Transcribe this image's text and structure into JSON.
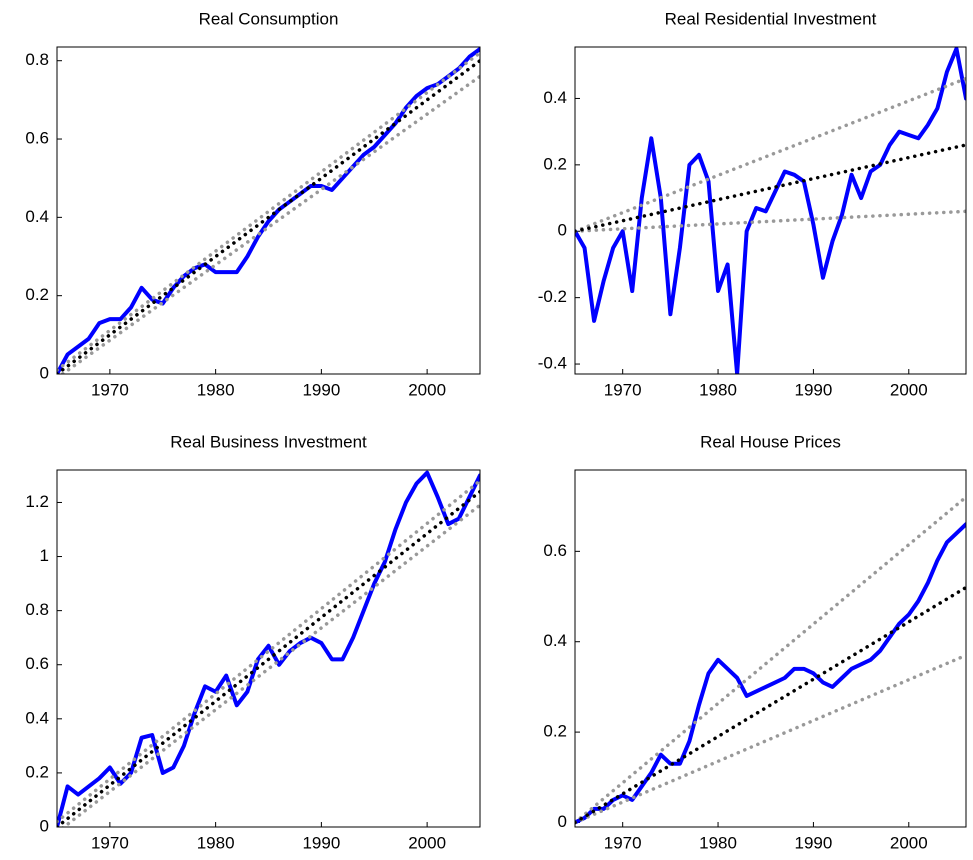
{
  "chart_data": [
    {
      "type": "line",
      "title": "Real Consumption",
      "x": [
        1965,
        1966,
        1967,
        1968,
        1969,
        1970,
        1971,
        1972,
        1973,
        1974,
        1975,
        1976,
        1977,
        1978,
        1979,
        1980,
        1981,
        1982,
        1983,
        1984,
        1985,
        1986,
        1987,
        1988,
        1989,
        1990,
        1991,
        1992,
        1993,
        1994,
        1995,
        1996,
        1997,
        1998,
        1999,
        2000,
        2001,
        2002,
        2003,
        2004,
        2005
      ],
      "xlim": [
        1965,
        2005
      ],
      "xticks": [
        1970,
        1980,
        1990,
        2000
      ],
      "ylim": [
        0,
        0.835
      ],
      "yticks": [
        0,
        0.2,
        0.4,
        0.6,
        0.8
      ],
      "series": [
        {
          "color": "#0000ff",
          "style": "solid",
          "values": [
            0,
            0.05,
            0.07,
            0.09,
            0.13,
            0.14,
            0.14,
            0.17,
            0.22,
            0.19,
            0.18,
            0.22,
            0.25,
            0.27,
            0.28,
            0.26,
            0.26,
            0.26,
            0.3,
            0.35,
            0.39,
            0.42,
            0.44,
            0.46,
            0.48,
            0.48,
            0.47,
            0.5,
            0.53,
            0.56,
            0.58,
            0.61,
            0.64,
            0.68,
            0.71,
            0.73,
            0.74,
            0.76,
            0.78,
            0.81,
            0.83
          ]
        },
        {
          "color": "#999999",
          "style": "dotted",
          "x": [
            1965,
            2005
          ],
          "values": [
            0.01,
            0.82
          ]
        },
        {
          "color": "#999999",
          "style": "dotted",
          "x": [
            1965,
            2005
          ],
          "values": [
            -0.01,
            0.76
          ]
        },
        {
          "color": "#000000",
          "style": "dotted",
          "x": [
            1965,
            2005
          ],
          "values": [
            0,
            0.8
          ]
        }
      ]
    },
    {
      "type": "line",
      "title": "Real Residential Investment",
      "x": [
        1965,
        1966,
        1967,
        1968,
        1969,
        1970,
        1971,
        1972,
        1973,
        1974,
        1975,
        1976,
        1977,
        1978,
        1979,
        1980,
        1981,
        1982,
        1983,
        1984,
        1985,
        1986,
        1987,
        1988,
        1989,
        1990,
        1991,
        1992,
        1993,
        1994,
        1995,
        1996,
        1997,
        1998,
        1999,
        2000,
        2001,
        2002,
        2003,
        2004,
        2005,
        2006
      ],
      "xlim": [
        1965,
        2006
      ],
      "xticks": [
        1970,
        1980,
        1990,
        2000
      ],
      "ylim": [
        -0.43,
        0.555
      ],
      "yticks": [
        -0.4,
        -0.2,
        0,
        0.2,
        0.4
      ],
      "series": [
        {
          "color": "#0000ff",
          "style": "solid",
          "values": [
            0,
            -0.05,
            -0.27,
            -0.15,
            -0.05,
            0,
            -0.18,
            0.1,
            0.28,
            0.1,
            -0.25,
            -0.05,
            0.2,
            0.23,
            0.15,
            -0.18,
            -0.1,
            -0.43,
            0,
            0.07,
            0.06,
            0.12,
            0.18,
            0.17,
            0.15,
            0.02,
            -0.14,
            -0.03,
            0.05,
            0.17,
            0.1,
            0.18,
            0.2,
            0.26,
            0.3,
            0.29,
            0.28,
            0.32,
            0.37,
            0.48,
            0.55,
            0.4
          ]
        },
        {
          "color": "#999999",
          "style": "dotted",
          "x": [
            1965,
            2006
          ],
          "values": [
            0,
            0.46
          ]
        },
        {
          "color": "#999999",
          "style": "dotted",
          "x": [
            1965,
            2006
          ],
          "values": [
            0,
            0.06
          ]
        },
        {
          "color": "#000000",
          "style": "dotted",
          "x": [
            1965,
            2006
          ],
          "values": [
            0,
            0.26
          ]
        }
      ]
    },
    {
      "type": "line",
      "title": "Real Business Investment",
      "x": [
        1965,
        1966,
        1967,
        1968,
        1969,
        1970,
        1971,
        1972,
        1973,
        1974,
        1975,
        1976,
        1977,
        1978,
        1979,
        1980,
        1981,
        1982,
        1983,
        1984,
        1985,
        1986,
        1987,
        1988,
        1989,
        1990,
        1991,
        1992,
        1993,
        1994,
        1995,
        1996,
        1997,
        1998,
        1999,
        2000,
        2001,
        2002,
        2003,
        2004,
        2005
      ],
      "xlim": [
        1965,
        2005
      ],
      "xticks": [
        1970,
        1980,
        1990,
        2000
      ],
      "ylim": [
        0,
        1.32
      ],
      "yticks": [
        0,
        0.2,
        0.4,
        0.6,
        0.8,
        1,
        1.2
      ],
      "series": [
        {
          "color": "#0000ff",
          "style": "solid",
          "values": [
            0,
            0.15,
            0.12,
            0.15,
            0.18,
            0.22,
            0.16,
            0.2,
            0.33,
            0.34,
            0.2,
            0.22,
            0.3,
            0.42,
            0.52,
            0.5,
            0.56,
            0.45,
            0.5,
            0.62,
            0.67,
            0.6,
            0.65,
            0.68,
            0.7,
            0.68,
            0.62,
            0.62,
            0.7,
            0.8,
            0.9,
            0.98,
            1.1,
            1.2,
            1.27,
            1.31,
            1.22,
            1.12,
            1.14,
            1.22,
            1.3
          ]
        },
        {
          "color": "#999999",
          "style": "dotted",
          "x": [
            1965,
            2005
          ],
          "values": [
            0.02,
            1.28
          ]
        },
        {
          "color": "#999999",
          "style": "dotted",
          "x": [
            1965,
            2005
          ],
          "values": [
            -0.02,
            1.19
          ]
        },
        {
          "color": "#000000",
          "style": "dotted",
          "x": [
            1965,
            2005
          ],
          "values": [
            0,
            1.24
          ]
        }
      ]
    },
    {
      "type": "line",
      "title": "Real House Prices",
      "x": [
        1965,
        1966,
        1967,
        1968,
        1969,
        1970,
        1971,
        1972,
        1973,
        1974,
        1975,
        1976,
        1977,
        1978,
        1979,
        1980,
        1981,
        1982,
        1983,
        1984,
        1985,
        1986,
        1987,
        1988,
        1989,
        1990,
        1991,
        1992,
        1993,
        1994,
        1995,
        1996,
        1997,
        1998,
        1999,
        2000,
        2001,
        2002,
        2003,
        2004,
        2005,
        2006
      ],
      "xlim": [
        1965,
        2006
      ],
      "xticks": [
        1970,
        1980,
        1990,
        2000
      ],
      "ylim": [
        -0.01,
        0.78
      ],
      "yticks": [
        0,
        0.2,
        0.4,
        0.6
      ],
      "series": [
        {
          "color": "#0000ff",
          "style": "solid",
          "values": [
            0,
            0.01,
            0.03,
            0.03,
            0.05,
            0.06,
            0.05,
            0.08,
            0.11,
            0.15,
            0.13,
            0.13,
            0.18,
            0.26,
            0.33,
            0.36,
            0.34,
            0.32,
            0.28,
            0.29,
            0.3,
            0.31,
            0.32,
            0.34,
            0.34,
            0.33,
            0.31,
            0.3,
            0.32,
            0.34,
            0.35,
            0.36,
            0.38,
            0.41,
            0.44,
            0.46,
            0.49,
            0.53,
            0.58,
            0.62,
            0.64,
            0.66
          ]
        },
        {
          "color": "#999999",
          "style": "dotted",
          "x": [
            1965,
            2006
          ],
          "values": [
            0,
            0.72
          ]
        },
        {
          "color": "#999999",
          "style": "dotted",
          "x": [
            1965,
            2006
          ],
          "values": [
            0,
            0.37
          ]
        },
        {
          "color": "#000000",
          "style": "dotted",
          "x": [
            1965,
            2006
          ],
          "values": [
            0,
            0.52
          ]
        }
      ]
    }
  ]
}
